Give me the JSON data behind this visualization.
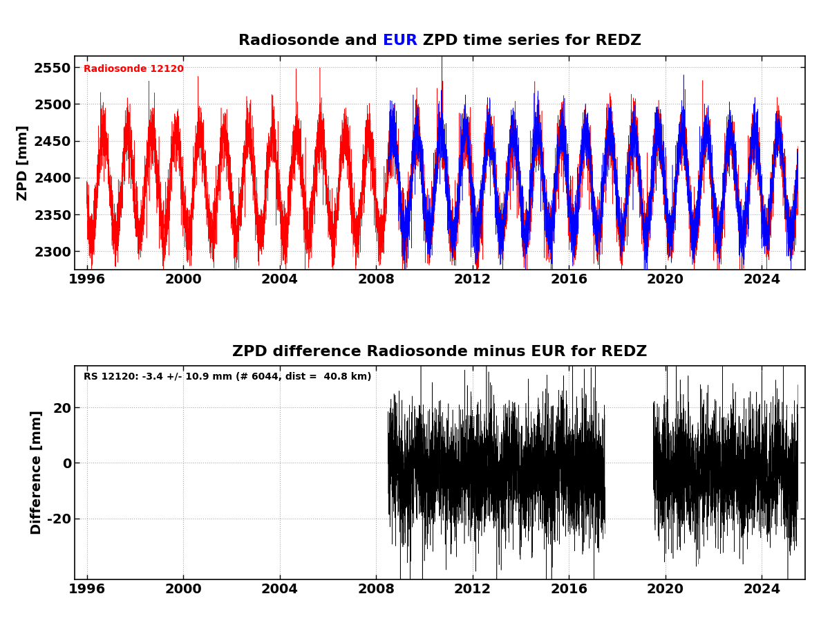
{
  "title1_part1": "Radiosonde and ",
  "title1_part2": "EUR",
  "title1_part3": " ZPD time series for REDZ",
  "title2": "ZPD difference Radiosonde minus EUR for REDZ",
  "ylabel1": "ZPD [mm]",
  "ylabel2": "Difference [mm]",
  "radiosonde_label": "Radiosonde 12120",
  "annotation2": "RS 12120: -3.4 +/- 10.9 mm (# 6044, dist =  40.8 km)",
  "xlim": [
    1995.5,
    2025.8
  ],
  "xticks": [
    1996,
    2000,
    2004,
    2008,
    2012,
    2016,
    2020,
    2024
  ],
  "ylim1": [
    2275,
    2565
  ],
  "yticks1": [
    2300,
    2350,
    2400,
    2450,
    2500,
    2550
  ],
  "ylim2": [
    -42,
    35
  ],
  "yticks2": [
    -20,
    0,
    20
  ],
  "red_color": "#ff0000",
  "blue_color": "#0000ff",
  "black_color": "#000000",
  "background_color": "#ffffff",
  "grid_color": "#aaaaaa",
  "title_fontsize": 16,
  "axis_fontsize": 14,
  "label_fontsize": 10
}
